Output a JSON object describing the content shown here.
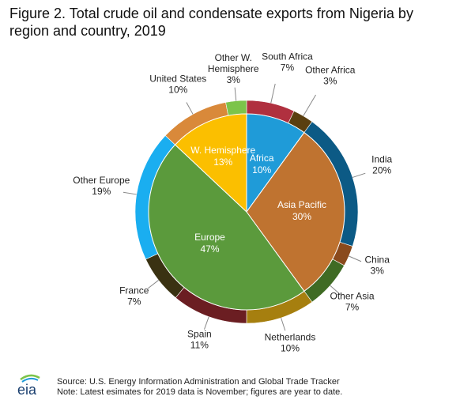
{
  "page": {
    "title_line1": "Figure 2. Total crude oil and condensate exports from Nigeria by",
    "title_line2": "region and country, 2019",
    "source": "Source: U.S. Energy Information Administration and Global Trade Tracker",
    "note": "Note: Latest esimates for 2019 data is November; figures are year to date.",
    "logo_text": "eia"
  },
  "chart_data": {
    "type": "pie",
    "title": "Figure 2. Total crude oil and condensate exports from Nigeria by region and country, 2019",
    "start_angle": 0,
    "direction": "clockwise",
    "inner_ring": {
      "label": "region",
      "slices": [
        {
          "name": "Africa",
          "label_line1": "Africa",
          "value_label": "10%",
          "value": 10,
          "color": "#1f9bd8",
          "text_color": "#ffffff"
        },
        {
          "name": "Asia Pacific",
          "label_line1": "Asia Pacific",
          "value_label": "30%",
          "value": 30,
          "color": "#bf7330",
          "text_color": "#ffffff"
        },
        {
          "name": "Europe",
          "label_line1": "Europe",
          "value_label": "47%",
          "value": 47,
          "color": "#5b9a3c",
          "text_color": "#ffffff"
        },
        {
          "name": "W. Hemisphere",
          "label_line1": "W. Hemisphere",
          "value_label": "13%",
          "value": 13,
          "color": "#fbbf00",
          "text_color": "#ffffff"
        }
      ]
    },
    "outer_ring": {
      "label": "country",
      "slices": [
        {
          "name": "South Africa",
          "label_lines": [
            "South Africa"
          ],
          "value_label": "7%",
          "value": 7,
          "color": "#b0303f"
        },
        {
          "name": "Other Africa",
          "label_lines": [
            "Other Africa"
          ],
          "value_label": "3%",
          "value": 3,
          "color": "#5a3f10"
        },
        {
          "name": "India",
          "label_lines": [
            "India"
          ],
          "value_label": "20%",
          "value": 20,
          "color": "#0c5a85"
        },
        {
          "name": "China",
          "label_lines": [
            "China"
          ],
          "value_label": "3%",
          "value": 3,
          "color": "#8a4a1c"
        },
        {
          "name": "Other Asia",
          "label_lines": [
            "Other Asia"
          ],
          "value_label": "7%",
          "value": 7,
          "color": "#3f6b24"
        },
        {
          "name": "Netherlands",
          "label_lines": [
            "Netherlands"
          ],
          "value_label": "10%",
          "value": 10,
          "color": "#a67f0f"
        },
        {
          "name": "Spain",
          "label_lines": [
            "Spain"
          ],
          "value_label": "11%",
          "value": 11,
          "color": "#6b1e22"
        },
        {
          "name": "France",
          "label_lines": [
            "France"
          ],
          "value_label": "7%",
          "value": 7,
          "color": "#3a3212"
        },
        {
          "name": "Other Europe",
          "label_lines": [
            "Other Europe"
          ],
          "value_label": "19%",
          "value": 19,
          "color": "#1aaef0"
        },
        {
          "name": "United States",
          "label_lines": [
            "United States"
          ],
          "value_label": "10%",
          "value": 10,
          "color": "#d9893a"
        },
        {
          "name": "Other W. Hemisphere",
          "label_lines": [
            "Other W.",
            "Hemisphere"
          ],
          "value_label": "3%",
          "value": 3,
          "color": "#7cc44a"
        }
      ]
    }
  }
}
